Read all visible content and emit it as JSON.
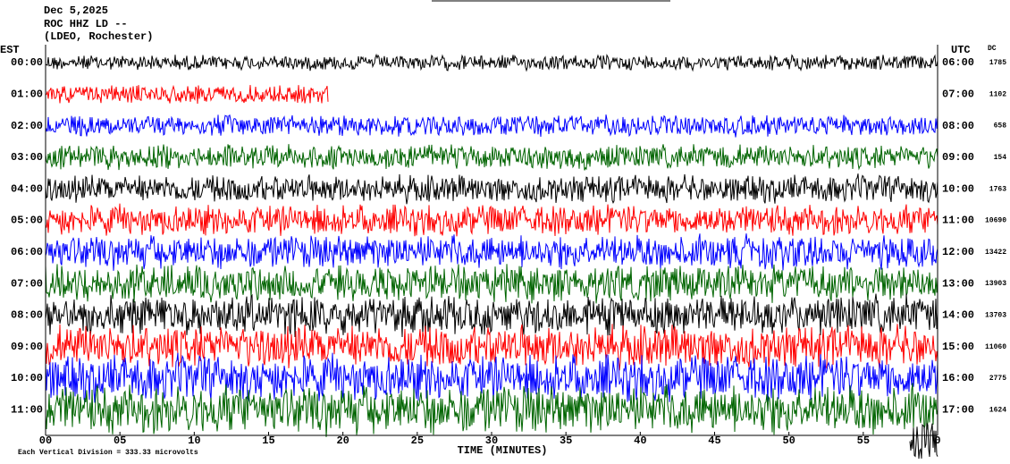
{
  "header": {
    "date": "Dec 5,2025",
    "station": "ROC HHZ LD --",
    "network": "(LDEO, Rochester)"
  },
  "left_label": "EST",
  "right_label": "UTC",
  "dc_label": "DC",
  "rows": [
    {
      "est": "00:00",
      "utc": "06:00",
      "dc": "1785"
    },
    {
      "est": "01:00",
      "utc": "07:00",
      "dc": "1102"
    },
    {
      "est": "02:00",
      "utc": "08:00",
      "dc": "658"
    },
    {
      "est": "03:00",
      "utc": "09:00",
      "dc": "154"
    },
    {
      "est": "04:00",
      "utc": "10:00",
      "dc": "1763"
    },
    {
      "est": "05:00",
      "utc": "11:00",
      "dc": "10690"
    },
    {
      "est": "06:00",
      "utc": "12:00",
      "dc": "13422"
    },
    {
      "est": "07:00",
      "utc": "13:00",
      "dc": "13903"
    },
    {
      "est": "08:00",
      "utc": "14:00",
      "dc": "13703"
    },
    {
      "est": "09:00",
      "utc": "15:00",
      "dc": "11060"
    },
    {
      "est": "10:00",
      "utc": "16:00",
      "dc": "2775"
    },
    {
      "est": "11:00",
      "utc": "17:00",
      "dc": "1624"
    }
  ],
  "x_ticks": [
    "00",
    "05",
    "10",
    "15",
    "20",
    "25",
    "30",
    "35",
    "40",
    "45",
    "50",
    "55",
    "0"
  ],
  "x_title": "TIME (MINUTES)",
  "footer": "Each Vertical Division =  333.33 microvolts"
}
